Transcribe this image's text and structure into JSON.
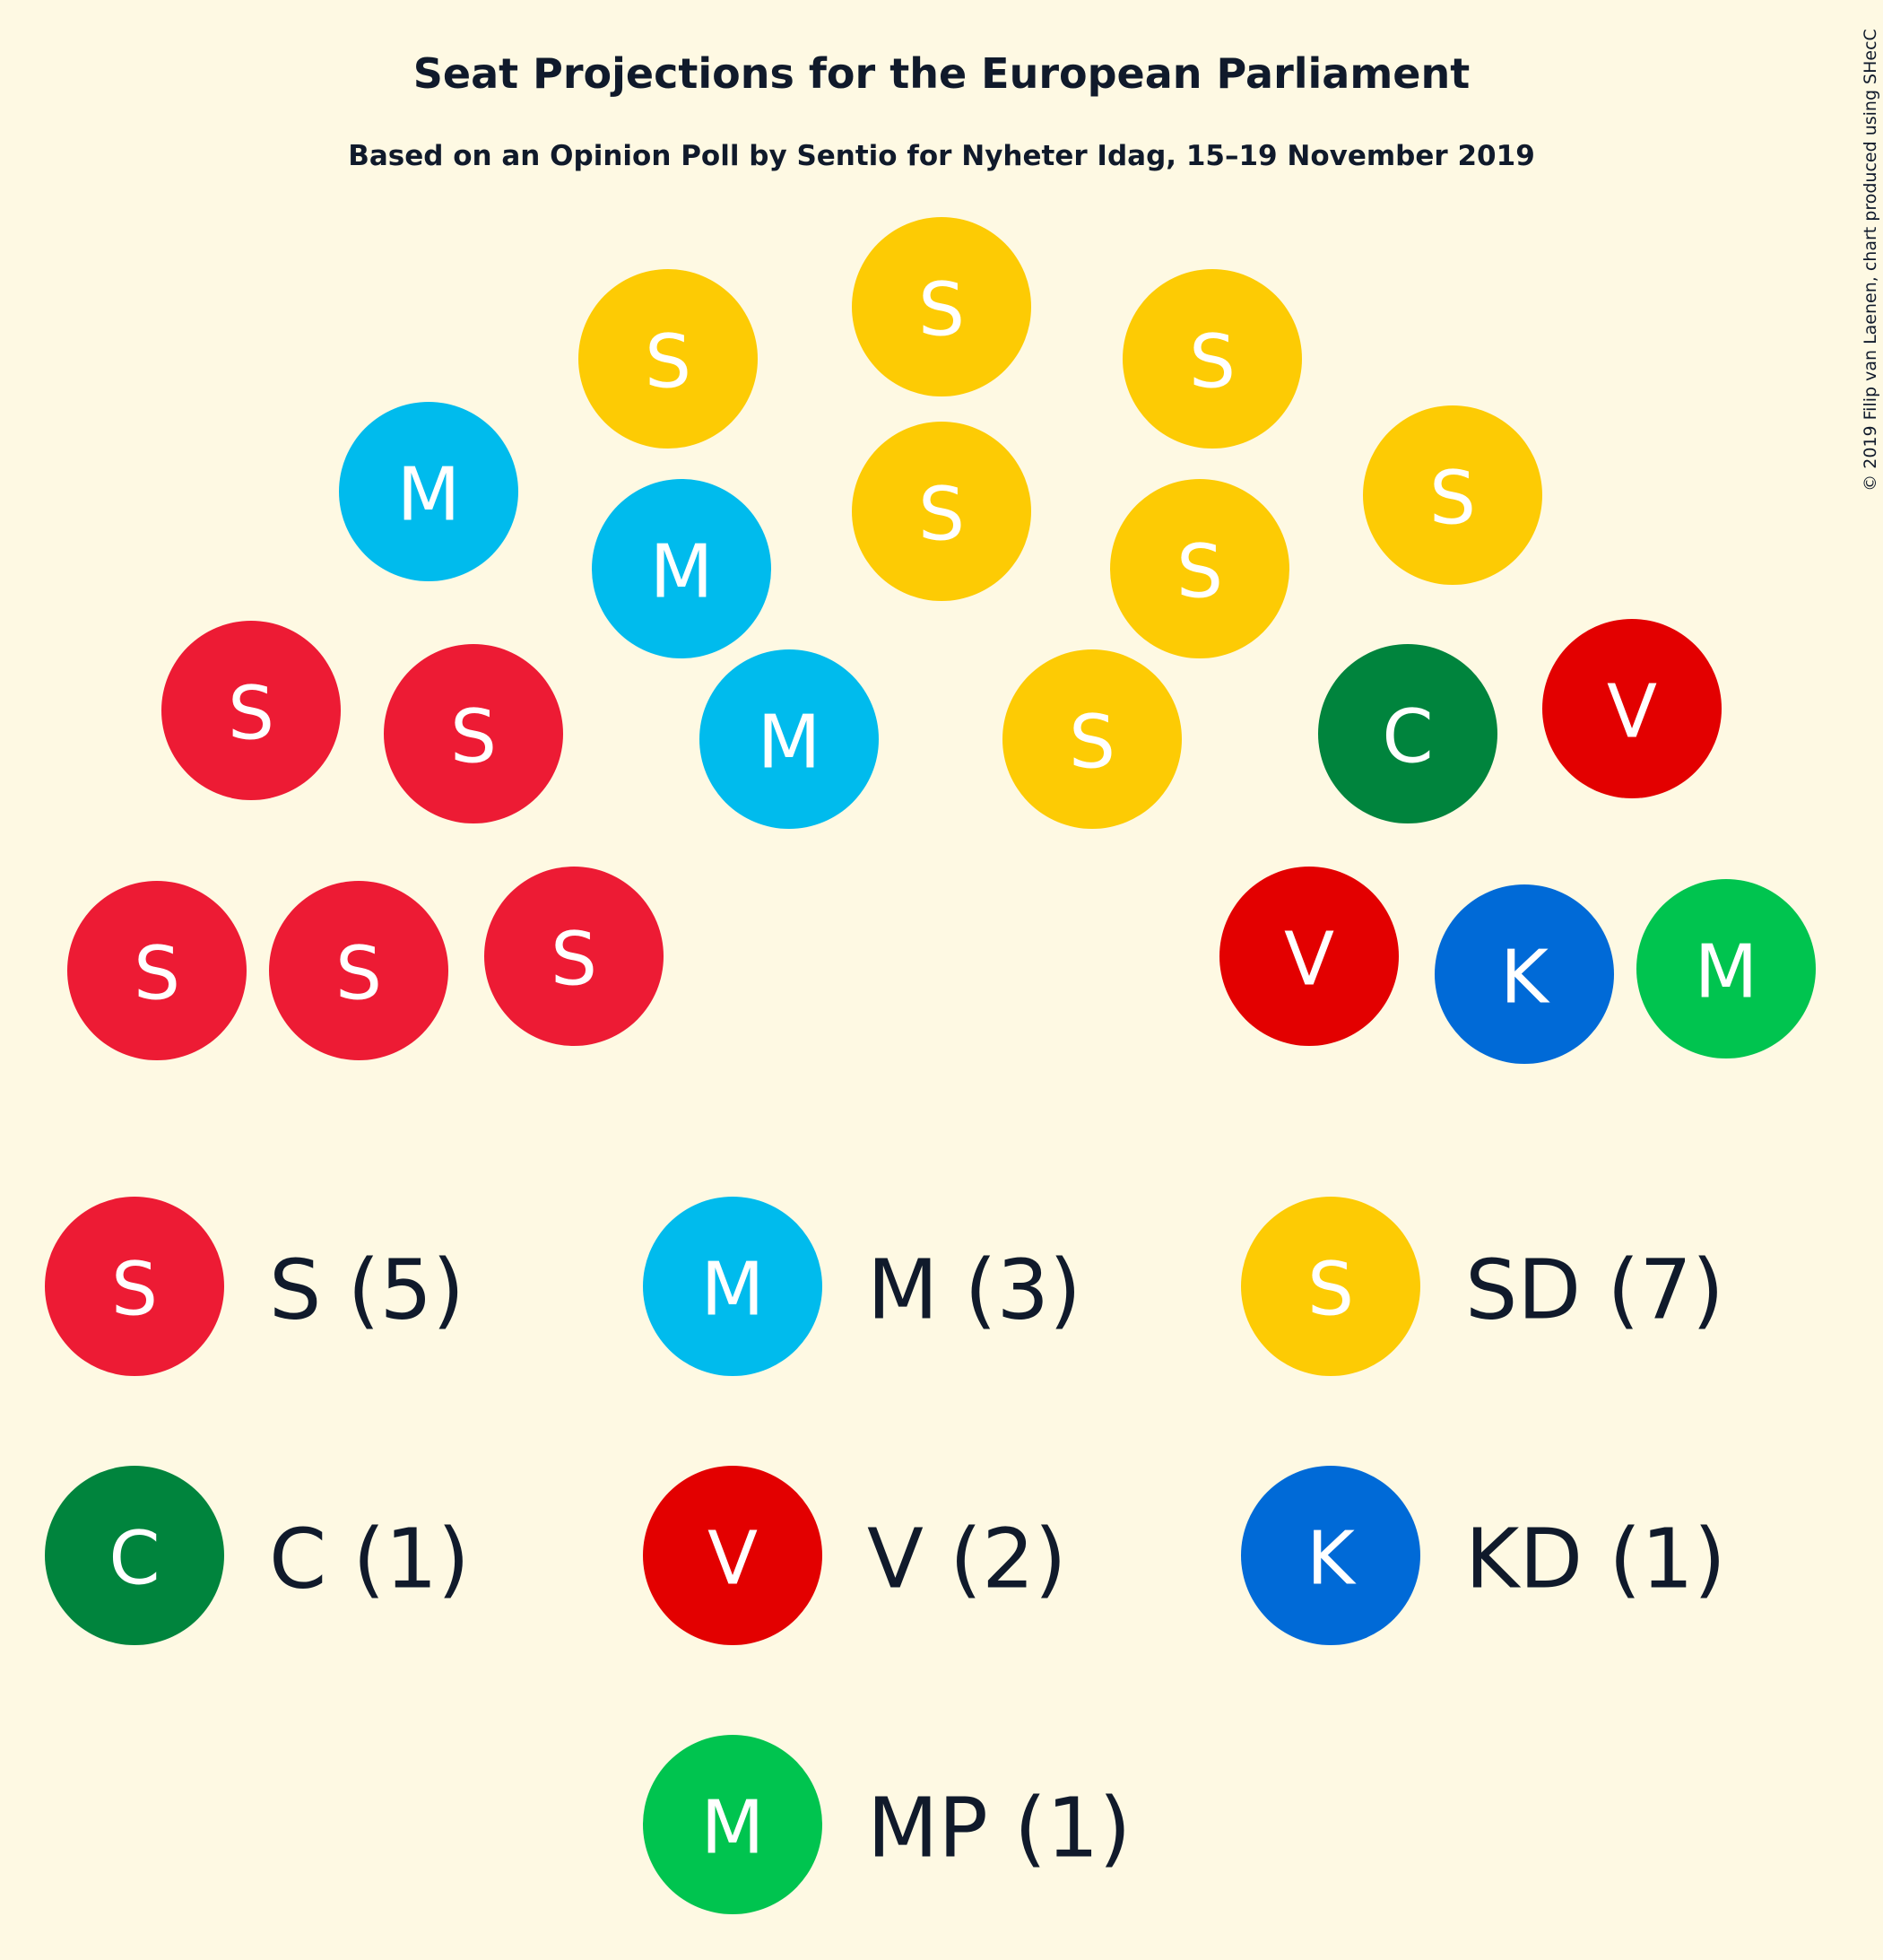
{
  "chart_data": {
    "type": "parliament",
    "title": "Seat Projections for the European Parliament",
    "subtitle": "Based on an Opinion Poll by Sentio for Nyheter Idag, 15–19 November 2019",
    "copyright": "© 2019 Filip van Laenen, chart produced using SHecC",
    "total_seats": 20,
    "parties": [
      {
        "id": "S",
        "letter": "S",
        "label": "S (5)",
        "seats": 5,
        "color": "#ed1b34"
      },
      {
        "id": "M",
        "letter": "M",
        "label": "M (3)",
        "seats": 3,
        "color": "#00bbed"
      },
      {
        "id": "SD",
        "letter": "S",
        "label": "SD (7)",
        "seats": 7,
        "color": "#fdcb04"
      },
      {
        "id": "C",
        "letter": "C",
        "label": "C (1)",
        "seats": 1,
        "color": "#00843d"
      },
      {
        "id": "V",
        "letter": "V",
        "label": "V (2)",
        "seats": 2,
        "color": "#e30000"
      },
      {
        "id": "KD",
        "letter": "K",
        "label": "KD (1)",
        "seats": 1,
        "color": "#006ad7"
      },
      {
        "id": "MP",
        "letter": "M",
        "label": "MP (1)",
        "seats": 1,
        "color": "#00c44f"
      }
    ],
    "seat_order": [
      "S",
      "S",
      "S",
      "S",
      "S",
      "M",
      "M",
      "M",
      "SD",
      "SD",
      "SD",
      "SD",
      "SD",
      "SD",
      "SD",
      "C",
      "V",
      "V",
      "KD",
      "MP"
    ]
  }
}
